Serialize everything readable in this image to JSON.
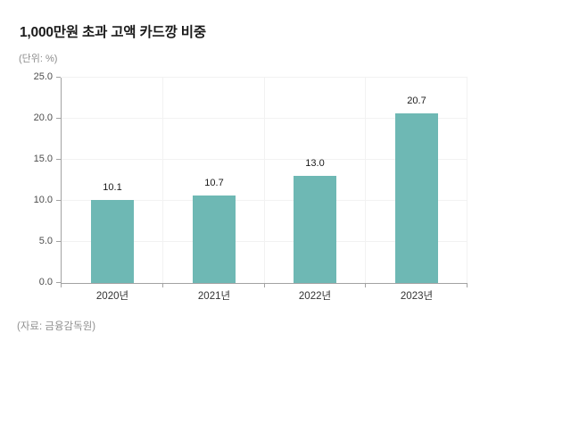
{
  "header": {
    "title": "1,000만원 초과 고액 카드깡 비중",
    "unit_label": "(단위: %)"
  },
  "footer": {
    "source": "(자료: 금융감독원)"
  },
  "chart_data": {
    "type": "bar",
    "title": "1,000만원 초과 고액 카드깡 비중",
    "subtitle": "(단위: %)",
    "categories": [
      "2020년",
      "2021년",
      "2022년",
      "2023년"
    ],
    "values": [
      10.1,
      10.7,
      13.0,
      20.7
    ],
    "value_labels": [
      "10.1",
      "10.7",
      "13.0",
      "20.7"
    ],
    "xlabel": "",
    "ylabel": "%",
    "ylim": [
      0,
      25
    ],
    "ytick_step": 5,
    "ytick_labels": [
      "0.0",
      "5.0",
      "10.0",
      "15.0",
      "20.0",
      "25.0"
    ],
    "grid": true,
    "legend_position": "none",
    "source": "(자료: 금융감독원)",
    "colors": {
      "bar": "#6eb8b4",
      "axis": "#a3a3a3",
      "grid": "#f2f2f2",
      "value_label": "#1a1a1a"
    }
  }
}
